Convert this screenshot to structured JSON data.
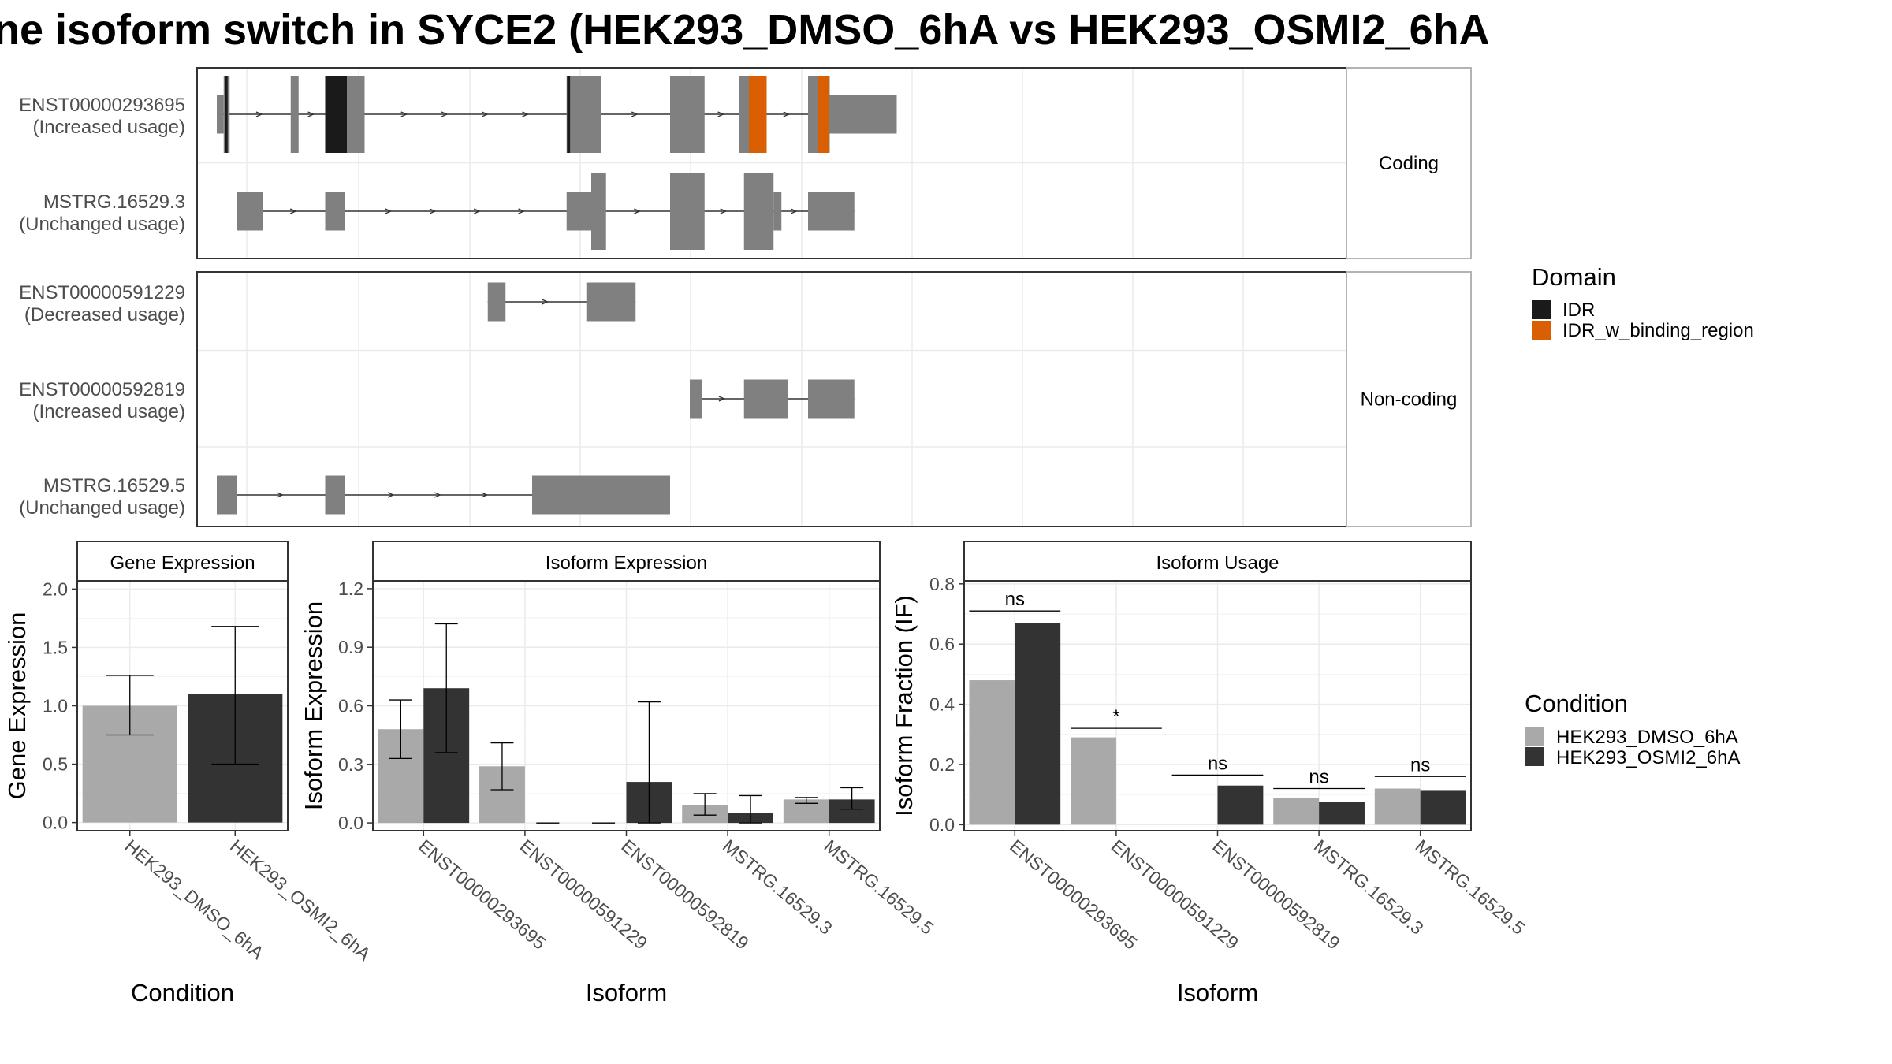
{
  "title": "ne isoform switch in SYCE2 (HEK293_DMSO_6hA vs HEK293_OSMI2_6hA",
  "colors": {
    "exon": "#808080",
    "idr": "#1a1a1a",
    "idr_binding": "#d95f02",
    "dmso": "#a9a9a9",
    "osmi": "#333333"
  },
  "structure": {
    "panels": [
      {
        "label": "Coding",
        "transcripts": [
          {
            "id": "ENST00000293695",
            "usage": "(Increased usage)",
            "exons": [
              [
                2.0,
                2.7,
                "s"
              ],
              [
                2.7,
                3.3,
                "t"
              ],
              [
                9.5,
                10.3,
                "t"
              ],
              [
                13.0,
                17.0,
                "t"
              ],
              [
                37.5,
                38.0,
                "t"
              ],
              [
                38.0,
                41.0,
                "t"
              ],
              [
                48.0,
                51.5,
                "t"
              ],
              [
                55.0,
                56.0,
                "t"
              ],
              [
                56.0,
                57.8,
                "t"
              ],
              [
                62.0,
                63.0,
                "t"
              ],
              [
                63.0,
                64.2,
                "t"
              ],
              [
                64.2,
                71.0,
                "s"
              ]
            ],
            "domains": [
              [
                2.85,
                3.1,
                "IDR"
              ],
              [
                13.0,
                15.2,
                "IDR"
              ],
              [
                37.55,
                37.85,
                "IDR"
              ],
              [
                56.0,
                57.8,
                "IDR_w_binding_region"
              ],
              [
                63.0,
                64.1,
                "IDR_w_binding_region"
              ]
            ]
          },
          {
            "id": "MSTRG.16529.3",
            "usage": "(Unchanged usage)",
            "exons": [
              [
                4.0,
                6.7,
                "s"
              ],
              [
                13.0,
                15.0,
                "s"
              ],
              [
                37.5,
                40.0,
                "s"
              ],
              [
                40.0,
                41.5,
                "t"
              ],
              [
                48.0,
                51.5,
                "t"
              ],
              [
                55.5,
                58.5,
                "t"
              ],
              [
                58.5,
                59.3,
                "s"
              ],
              [
                62.0,
                66.7,
                "s"
              ]
            ],
            "domains": []
          }
        ]
      },
      {
        "label": "Non-coding",
        "transcripts": [
          {
            "id": "ENST00000591229",
            "usage": "(Decreased usage)",
            "exons": [
              [
                29.5,
                31.3,
                "s"
              ],
              [
                39.5,
                44.5,
                "s"
              ]
            ],
            "domains": []
          },
          {
            "id": "ENST00000592819",
            "usage": "(Increased usage)",
            "exons": [
              [
                50.0,
                51.2,
                "s"
              ],
              [
                55.5,
                60.0,
                "s"
              ],
              [
                62.0,
                66.7,
                "s"
              ]
            ],
            "domains": []
          },
          {
            "id": "MSTRG.16529.5",
            "usage": "(Unchanged usage)",
            "exons": [
              [
                2.0,
                4.0,
                "s"
              ],
              [
                13.0,
                15.0,
                "s"
              ],
              [
                34.0,
                48.0,
                "s"
              ]
            ],
            "domains": []
          }
        ]
      }
    ]
  },
  "legend_domain": {
    "title": "Domain",
    "items": [
      {
        "label": "IDR",
        "color": "#1a1a1a"
      },
      {
        "label": "IDR_w_binding_region",
        "color": "#d95f02"
      }
    ]
  },
  "legend_condition": {
    "title": "Condition",
    "items": [
      {
        "label": "HEK293_DMSO_6hA",
        "color": "#a9a9a9"
      },
      {
        "label": "HEK293_OSMI2_6hA",
        "color": "#333333"
      }
    ]
  },
  "chart_data": [
    {
      "type": "bar",
      "title": "Gene Expression",
      "xlabel": "Condition",
      "ylabel": "Gene Expression",
      "ylim": [
        -0.07,
        2.07
      ],
      "yticks": [
        "0.0",
        "0.5",
        "1.0",
        "1.5",
        "2.0"
      ],
      "categories": [
        "HEK293_DMSO_6hA",
        "HEK293_OSMI2_6hA"
      ],
      "values": [
        1.0,
        1.1
      ],
      "errors": [
        [
          0.75,
          1.26
        ],
        [
          0.5,
          1.68
        ]
      ]
    },
    {
      "type": "bar",
      "title": "Isoform Expression",
      "xlabel": "Isoform",
      "ylabel": "Isoform Expression",
      "ylim": [
        -0.04,
        1.24
      ],
      "yticks": [
        "0.0",
        "0.3",
        "0.6",
        "0.9",
        "1.2"
      ],
      "categories": [
        "ENST00000293695",
        "ENST00000591229",
        "ENST00000592819",
        "MSTRG.16529.3",
        "MSTRG.16529.5"
      ],
      "series": [
        {
          "name": "HEK293_DMSO_6hA",
          "values": [
            0.48,
            0.29,
            0.0,
            0.09,
            0.12
          ],
          "errors": [
            [
              0.33,
              0.63
            ],
            [
              0.17,
              0.41
            ],
            [
              0.0,
              0.0
            ],
            [
              0.04,
              0.15
            ],
            [
              0.1,
              0.13
            ]
          ]
        },
        {
          "name": "HEK293_OSMI2_6hA",
          "values": [
            0.69,
            0.0,
            0.21,
            0.05,
            0.12
          ],
          "errors": [
            [
              0.36,
              1.02
            ],
            [
              0.0,
              0.0
            ],
            [
              0.0,
              0.62
            ],
            [
              0.0,
              0.14
            ],
            [
              0.07,
              0.18
            ]
          ]
        }
      ]
    },
    {
      "type": "bar",
      "title": "Isoform Usage",
      "xlabel": "Isoform",
      "ylabel": "Isoform Fraction (IF)",
      "ylim": [
        -0.02,
        0.81
      ],
      "yticks": [
        "0.0",
        "0.2",
        "0.4",
        "0.6",
        "0.8"
      ],
      "categories": [
        "ENST00000293695",
        "ENST00000591229",
        "ENST00000592819",
        "MSTRG.16529.3",
        "MSTRG.16529.5"
      ],
      "series": [
        {
          "name": "HEK293_DMSO_6hA",
          "values": [
            0.48,
            0.29,
            0.0,
            0.09,
            0.12
          ]
        },
        {
          "name": "HEK293_OSMI2_6hA",
          "values": [
            0.67,
            0.0,
            0.13,
            0.075,
            0.115
          ]
        }
      ],
      "significance": [
        {
          "label": "ns",
          "y": 0.71
        },
        {
          "label": "*",
          "y": 0.32
        },
        {
          "label": "ns",
          "y": 0.165
        },
        {
          "label": "ns",
          "y": 0.12
        },
        {
          "label": "ns",
          "y": 0.16
        }
      ]
    }
  ]
}
